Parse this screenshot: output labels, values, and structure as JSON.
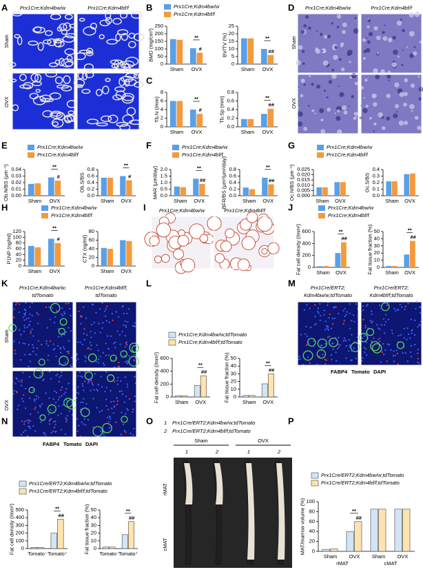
{
  "chart_data": [
    {
      "type": "bar",
      "ylabel": "BMD (mg/cm³)",
      "categories": [
        "Sham",
        "OVX"
      ],
      "series": [
        {
          "name": "Prx1Cre;Kdm4bw/w",
          "color": "#5aa0e6",
          "values": [
            165,
            105
          ]
        },
        {
          "name": "Prx1Cre;Kdm4bf/f",
          "color": "#f59a3c",
          "values": [
            160,
            75
          ]
        }
      ],
      "ylim": [
        0,
        250
      ],
      "yticks": [
        0,
        50,
        100,
        150,
        200,
        250
      ],
      "annotations": [
        "**",
        "#"
      ]
    },
    {
      "type": "bar",
      "ylabel": "BV/TV (%)",
      "categories": [
        "Sham",
        "OVX"
      ],
      "series": [
        {
          "color": "#5aa0e6",
          "values": [
            17,
            10
          ]
        },
        {
          "color": "#f59a3c",
          "values": [
            17,
            6
          ]
        }
      ],
      "ylim": [
        0,
        25
      ],
      "yticks": [
        0,
        5,
        10,
        15,
        20,
        25
      ],
      "annotations": [
        "**",
        "##"
      ]
    },
    {
      "type": "bar",
      "ylabel": "Tb.N (/mm)",
      "categories": [
        "Sham",
        "OVX"
      ],
      "series": [
        {
          "color": "#5aa0e6",
          "values": [
            6,
            4
          ]
        },
        {
          "color": "#f59a3c",
          "values": [
            6,
            3
          ]
        }
      ],
      "ylim": [
        0,
        8
      ],
      "yticks": [
        0,
        2,
        4,
        6,
        8
      ],
      "annotations": [
        "**",
        "#"
      ]
    },
    {
      "type": "bar",
      "ylabel": "Tb.Sp (mm)",
      "categories": [
        "Sham",
        "OVX"
      ],
      "series": [
        {
          "color": "#5aa0e6",
          "values": [
            0.18,
            0.3
          ]
        },
        {
          "color": "#f59a3c",
          "values": [
            0.18,
            0.42
          ]
        }
      ],
      "ylim": [
        0,
        0.8
      ],
      "yticks": [
        {
          "value": 0,
          "label": "0.0"
        },
        0.2,
        0.4,
        0.6,
        0.8
      ],
      "annotations": [
        "**",
        "##"
      ]
    },
    {
      "type": "bar",
      "ylabel": "Ob.N/BS (μm⁻¹)",
      "categories": [
        "Sham",
        "OVX"
      ],
      "series": [
        {
          "name": "Prx1Cre;Kdm4bw/w",
          "color": "#5aa0e6",
          "values": [
            0.018,
            0.028
          ]
        },
        {
          "name": "Prx1Cre;Kdm4bf/f",
          "color": "#f59a3c",
          "values": [
            0.019,
            0.023
          ]
        }
      ],
      "ylim": [
        0,
        0.04
      ],
      "yticks": [
        {
          "value": 0,
          "label": "0.00"
        },
        0.01,
        0.02,
        0.03,
        0.04
      ],
      "annotations": [
        "**",
        "#"
      ]
    },
    {
      "type": "bar",
      "ylabel": "Ob.S/BS",
      "categories": [
        "Sham",
        "OVX"
      ],
      "series": [
        {
          "color": "#5aa0e6",
          "values": [
            0.55,
            0.6
          ]
        },
        {
          "color": "#f59a3c",
          "values": [
            0.55,
            0.47
          ]
        }
      ],
      "ylim": [
        0,
        0.8
      ],
      "yticks": [
        {
          "value": 0,
          "label": "0.0"
        },
        0.2,
        0.4,
        0.6,
        0.8
      ],
      "annotations": [
        "**",
        "#"
      ]
    },
    {
      "type": "bar",
      "ylabel": "MAR (μm/day)",
      "categories": [
        "Sham",
        "OVX"
      ],
      "series": [
        {
          "name": "Prx1Cre;Kdm4bw/w",
          "color": "#5aa0e6",
          "values": [
            0.7,
            1.3
          ]
        },
        {
          "name": "Prx1Cre;Kdm4bf/f",
          "color": "#f59a3c",
          "values": [
            0.65,
            0.9
          ]
        }
      ],
      "ylim": [
        0,
        2
      ],
      "yticks": [
        {
          "value": 0,
          "label": "0.0"
        },
        0.5,
        {
          "value": 1,
          "label": "1.0"
        },
        1.5,
        {
          "value": 2,
          "label": "2.0"
        }
      ],
      "annotations": [
        "**",
        "##"
      ]
    },
    {
      "type": "bar",
      "ylabel": "BFR/BS (μm³/μm²/day)",
      "categories": [
        "Sham",
        "OVX"
      ],
      "series": [
        {
          "color": "#5aa0e6",
          "values": [
            0.25,
            0.55
          ]
        },
        {
          "color": "#f59a3c",
          "values": [
            0.2,
            0.35
          ]
        }
      ],
      "ylim": [
        0,
        0.8
      ],
      "yticks": [
        {
          "value": 0,
          "label": "0.0"
        },
        0.2,
        0.4,
        0.6,
        0.8
      ],
      "annotations": [
        "**",
        "##"
      ]
    },
    {
      "type": "bar",
      "ylabel": "Oc.N/BS (μm⁻¹)",
      "categories": [
        "Sham",
        "OVX"
      ],
      "series": [
        {
          "name": "Prx1Cre;Kdm4bw/w",
          "color": "#5aa0e6",
          "values": [
            0.008,
            0.013
          ]
        },
        {
          "name": "Prx1Cre;Kdm4bf/f",
          "color": "#f59a3c",
          "values": [
            0.008,
            0.013
          ]
        }
      ],
      "ylim": [
        0,
        0.025
      ],
      "yticks": [
        {
          "value": 0,
          "label": "0.000"
        },
        0.005,
        {
          "value": 0.01,
          "label": "0.010"
        },
        0.015,
        {
          "value": 0.02,
          "label": "0.020"
        },
        0.025
      ]
    },
    {
      "type": "bar",
      "ylabel": "Oc.S/BS",
      "categories": [
        "Sham",
        "OVX"
      ],
      "series": [
        {
          "color": "#5aa0e6",
          "values": [
            0.22,
            0.33
          ]
        },
        {
          "color": "#f59a3c",
          "values": [
            0.22,
            0.34
          ]
        }
      ],
      "ylim": [
        0,
        0.4
      ],
      "yticks": [
        {
          "value": 0,
          "label": "0.0"
        },
        0.1,
        0.2,
        0.3,
        0.4
      ]
    },
    {
      "type": "bar",
      "ylabel": "P1NP (ng/ml)",
      "categories": [
        "Sham",
        "OVX"
      ],
      "series": [
        {
          "name": "Prx1Cre;Kdm4bw/w",
          "color": "#5aa0e6",
          "values": [
            70,
            95
          ]
        },
        {
          "name": "Prx1Cre;Kdm4bf/f",
          "color": "#f59a3c",
          "values": [
            65,
            80
          ]
        }
      ],
      "ylim": [
        0,
        120
      ],
      "yticks": [
        0,
        20,
        40,
        60,
        80,
        100,
        120
      ],
      "annotations": [
        "**",
        "#"
      ]
    },
    {
      "type": "bar",
      "ylabel": "CTX (ng/ml)",
      "categories": [
        "Sham",
        "OVX"
      ],
      "series": [
        {
          "color": "#5aa0e6",
          "values": [
            42,
            60
          ]
        },
        {
          "color": "#f59a3c",
          "values": [
            40,
            58
          ]
        }
      ],
      "ylim": [
        0,
        80
      ],
      "yticks": [
        0,
        20,
        40,
        60,
        80
      ]
    },
    {
      "type": "bar",
      "ylabel": "Fat cell density (/mm²)",
      "categories": [
        "Sham",
        "OVX"
      ],
      "series": [
        {
          "name": "Prx1Cre;Kdm4bw/w",
          "color": "#5aa0e6",
          "values": [
            20,
            240
          ]
        },
        {
          "name": "Prx1Cre;Kdm4bf/f",
          "color": "#f59a3c",
          "values": [
            25,
            420
          ]
        }
      ],
      "ylim": [
        0,
        600
      ],
      "yticks": [
        0,
        200,
        400,
        600
      ],
      "annotations": [
        "**",
        "##"
      ]
    },
    {
      "type": "bar",
      "ylabel": "Fat tissue fraction (%)",
      "categories": [
        "Sham",
        "OVX"
      ],
      "series": [
        {
          "color": "#5aa0e6",
          "values": [
            2,
            18
          ]
        },
        {
          "color": "#f59a3c",
          "values": [
            2,
            37
          ]
        }
      ],
      "ylim": [
        0,
        50
      ],
      "yticks": [
        0,
        10,
        20,
        30,
        40,
        50
      ],
      "annotations": [
        "**",
        "##"
      ]
    },
    {
      "type": "bar",
      "ylabel": "Fat cell density (/mm²)",
      "categories": [
        "Sham",
        "OVX"
      ],
      "edgecolor": "#444",
      "series": [
        {
          "name": "Prx1Cre;Kdm4bw/w;tdTomato",
          "color": "#d3e4f5",
          "values": [
            20,
            180
          ]
        },
        {
          "name": "Prx1Cre;Kdm4bf/f;tdTomato",
          "color": "#fde3b0",
          "values": [
            20,
            330
          ]
        }
      ],
      "ylim": [
        0,
        600
      ],
      "yticks": [
        0,
        200,
        400,
        600
      ],
      "annotations": [
        "**",
        "##"
      ]
    },
    {
      "type": "bar",
      "ylabel": "Fat tissue fraction (%)",
      "categories": [
        "Sham",
        "OVX"
      ],
      "edgecolor": "#444",
      "series": [
        {
          "color": "#d3e4f5",
          "values": [
            2,
            17
          ]
        },
        {
          "color": "#fde3b0",
          "values": [
            2,
            30
          ]
        }
      ],
      "ylim": [
        0,
        50
      ],
      "yticks": [
        0,
        10,
        20,
        30,
        40,
        50
      ],
      "annotations": [
        "**",
        "##"
      ]
    },
    {
      "type": "bar",
      "ylabel": "Fat cell density (/mm²)",
      "categories": [
        "Tomato⁻",
        "Tomato⁺"
      ],
      "edgecolor": "#444",
      "series": [
        {
          "name": "Prx1Cre/ERT2;Kdm4bw/w;tdTomato",
          "color": "#d3e4f5",
          "values": [
            15,
            200
          ]
        },
        {
          "name": "Prx1Cre/ERT2;Kdm4bf/f;tdTomato",
          "color": "#fde3b0",
          "values": [
            15,
            380
          ]
        }
      ],
      "ylim": [
        0,
        500
      ],
      "yticks": [
        0,
        100,
        200,
        300,
        400,
        500
      ],
      "annotations": [
        "**",
        "##"
      ]
    },
    {
      "type": "bar",
      "ylabel": "Fat tissue fraction (%)",
      "categories": [
        "Tomato⁻",
        "Tomato⁺"
      ],
      "edgecolor": "#444",
      "series": [
        {
          "color": "#d3e4f5",
          "values": [
            2,
            18
          ]
        },
        {
          "color": "#fde3b0",
          "values": [
            2,
            35
          ]
        }
      ],
      "ylim": [
        0,
        50
      ],
      "yticks": [
        0,
        10,
        20,
        30,
        40,
        50
      ],
      "annotations": [
        "**",
        "##"
      ]
    },
    {
      "type": "bar",
      "ylabel": "MAT/marrow volume (%)",
      "categories": [
        "Sham",
        "OVX",
        "Sham",
        "OVX"
      ],
      "groups": [
        "rMAT",
        "cMAT"
      ],
      "edgecolor": "#444",
      "series": [
        {
          "name": "Prx1Cre/ERT2;Kdm4bw/w;tdTomato",
          "color": "#d3e4f5",
          "values": [
            4,
            40,
            85,
            85
          ]
        },
        {
          "name": "Prx1Cre/ERT2;Kdm4bf/f;tdTomato",
          "color": "#fde3b0",
          "values": [
            5,
            60,
            85,
            85
          ]
        }
      ],
      "ylim": [
        0,
        100
      ],
      "yticks": [
        0,
        20,
        40,
        60,
        80,
        100
      ],
      "annotations": [
        "**",
        "##"
      ]
    }
  ],
  "figure": {
    "panels": [
      "A",
      "B",
      "C",
      "D",
      "E",
      "F",
      "G",
      "H",
      "I",
      "J",
      "K",
      "L",
      "M",
      "N",
      "O",
      "P"
    ],
    "A": {
      "columns": [
        "Prx1Cre;Kdm4bw/w",
        "Prx1Cre;Kdm4bf/f"
      ],
      "rows": [
        "Sham",
        "OVX"
      ]
    },
    "D": {
      "columns": [
        "Prx1Cre;Kdm4bw/w",
        "Prx1Cre;Kdm4bf/f"
      ],
      "rows": [
        "Sham",
        "OVX"
      ]
    },
    "I": {
      "columns": [
        "Prx1Cre;Kdm4bw/w",
        "Prx1Cre;Kdm4bf/f"
      ]
    },
    "K": {
      "columns": [
        [
          "Prx1Cre;Kdm4bw/w;",
          "tdTomato"
        ],
        [
          "Prx1Cre;Kdm4bf/f;",
          "tdTomato"
        ]
      ],
      "rows": [
        "Sham",
        "OVX"
      ],
      "stains": [
        "FABP4",
        "Tomato",
        "DAPI"
      ]
    },
    "M": {
      "columns": [
        [
          "Prx1Cre/ERT2;",
          "Kdm4bw/w;tdTomato"
        ],
        [
          "Prx1Cre/ERT2;",
          "Kdm4bf/f;tdTomato"
        ]
      ],
      "stains": [
        "FABP4",
        "Tomato",
        "DAPI"
      ]
    },
    "O": {
      "legend": [
        {
          "number": "1",
          "label": "Prx1Cre/ERT2;Kdm4bw/w;tdTomato"
        },
        {
          "number": "2",
          "label": "Prx1Cre/ERT2;Kdm4bf/f;tdTomato"
        }
      ],
      "groups": [
        "Sham",
        "OVX"
      ],
      "columns": [
        "1",
        "2",
        "1",
        "2"
      ],
      "rows": [
        "rMAT",
        "cMAT"
      ]
    }
  }
}
